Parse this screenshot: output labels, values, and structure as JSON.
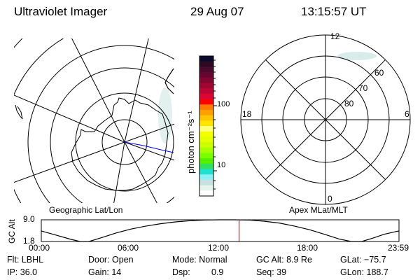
{
  "header": {
    "instrument": "Ultraviolet Imager",
    "date": "29 Aug 07",
    "time": "13:15:57 UT"
  },
  "colorbar": {
    "label": "photon cm⁻²s⁻¹",
    "ticks": [
      "100",
      "10"
    ],
    "colors": [
      "#0a0a2e",
      "#2e0a22",
      "#4a0a2c",
      "#66062e",
      "#820630",
      "#a00632",
      "#be0634",
      "#dc0636",
      "#ff0000",
      "#ff7a00",
      "#ffa000",
      "#ffc400",
      "#ffe400",
      "#ffff80",
      "#f4ff00",
      "#e4ff00",
      "#ccff00",
      "#a8ff00",
      "#7cff00",
      "#54f000",
      "#30e060",
      "#20e0d0",
      "#8cf0f4",
      "#c8e0e0",
      "#e4f4ec",
      "#ffffff"
    ]
  },
  "geo_map": {
    "label": "Geographic Lat/Lon"
  },
  "mag_map": {
    "label": "Apex MLat/MLT",
    "mlt_labels": {
      "top": "12",
      "left": "18",
      "right": "6",
      "bottom": "0"
    },
    "lat_labels": [
      "60",
      "70",
      "80"
    ]
  },
  "chart_data": {
    "type": "line",
    "ylabel": "GC Alt",
    "yticks": [
      "9.0",
      "1.8"
    ],
    "ylim": [
      1.8,
      9.0
    ],
    "xticks": [
      "00:00",
      "06:00",
      "12:00",
      "18:00",
      "23:59"
    ],
    "xlim_hours": [
      0,
      24
    ],
    "current_time_hours": 13.27,
    "current_time_color": "#ff0000",
    "x": [
      0,
      1,
      2,
      2.6,
      3.2,
      4,
      5,
      6,
      7,
      8,
      9,
      10,
      11,
      12,
      13,
      14,
      15,
      16,
      17,
      18,
      19,
      20,
      20.8,
      21.5,
      22.3,
      23,
      23.98
    ],
    "y": [
      5.3,
      3.9,
      2.5,
      1.8,
      1.8,
      3.0,
      4.6,
      5.9,
      6.9,
      7.7,
      8.3,
      8.7,
      8.95,
      9.0,
      9.0,
      8.9,
      8.5,
      7.9,
      6.9,
      5.7,
      4.2,
      2.6,
      1.8,
      1.8,
      3.0,
      4.2,
      5.3
    ]
  },
  "info": {
    "filter": "Flt: LBHL",
    "ip": "IP: 36.0",
    "door": "Door: Open",
    "gain": "Gain: 14",
    "mode": "Mode: Normal",
    "dsp_label": "Dsp:",
    "dsp_value": "0.9",
    "gc_alt": "GC Alt: 8.9 Re",
    "seq": "Seq: 39",
    "glat": "GLat: −75.7",
    "glon": "GLon: 188.7"
  }
}
